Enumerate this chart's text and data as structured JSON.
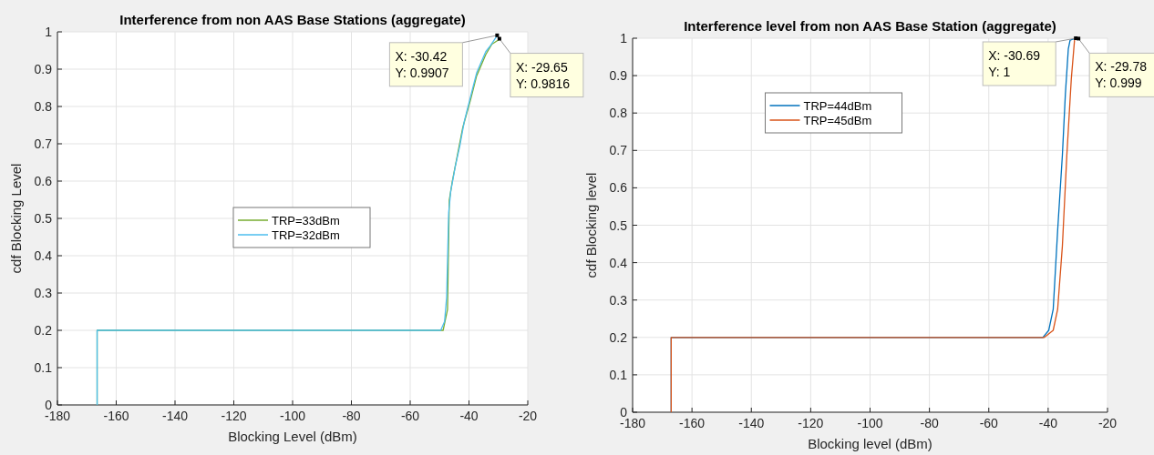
{
  "chart_data": [
    {
      "type": "line",
      "title": "Interference from non AAS Base Stations (aggregate)",
      "xlabel": "Blocking Level (dBm)",
      "ylabel": "cdf Blocking Level",
      "xlim": [
        -180,
        -20
      ],
      "ylim": [
        0,
        1
      ],
      "xticks": [
        -180,
        -160,
        -140,
        -120,
        -100,
        -80,
        -60,
        -40,
        -20
      ],
      "yticks": [
        0,
        0.1,
        0.2,
        0.3,
        0.4,
        0.5,
        0.6,
        0.7,
        0.8,
        0.9,
        1
      ],
      "grid": true,
      "legend": "center",
      "line_style": "solid",
      "marker": "none",
      "series": [
        {
          "name": "TRP=33dBm",
          "color": "#77ac30",
          "x": [
            -166.5,
            -166.5,
            -48.8,
            -47.3,
            -46.7,
            -45.7,
            -44.1,
            -42.1,
            -39.5,
            -37.4,
            -34.3,
            -32.2,
            -29.65
          ],
          "values": [
            0,
            0.2,
            0.2,
            0.256,
            0.549,
            0.598,
            0.663,
            0.744,
            0.817,
            0.882,
            0.939,
            0.967,
            0.98
          ]
        },
        {
          "name": "TRP=32dBm",
          "color": "#4dbeee",
          "x": [
            -166.5,
            -166.5,
            -49.6,
            -48.3,
            -47.6,
            -46.9,
            -46.2,
            -44.7,
            -43.1,
            -41.6,
            -39.5,
            -37.4,
            -34.3,
            -32.7,
            -30.42
          ],
          "values": [
            0,
            0.2,
            0.2,
            0.224,
            0.289,
            0.516,
            0.573,
            0.638,
            0.695,
            0.76,
            0.825,
            0.89,
            0.947,
            0.963,
            0.99
          ]
        }
      ],
      "annotations": [
        {
          "text": "X: -30.42\nY: 0.9907",
          "x": -30.42,
          "y": 0.9907
        },
        {
          "text": "X: -29.65\nY: 0.9816",
          "x": -29.65,
          "y": 0.9816
        }
      ]
    },
    {
      "type": "line",
      "title": "Interference level from non AAS Base Station (aggregate)",
      "xlabel": "Blocking level (dBm)",
      "ylabel": "cdf Blocking level",
      "xlim": [
        -180,
        -20
      ],
      "ylim": [
        0,
        1
      ],
      "xticks": [
        -180,
        -160,
        -140,
        -120,
        -100,
        -80,
        -60,
        -40,
        -20
      ],
      "yticks": [
        0,
        0.1,
        0.2,
        0.3,
        0.4,
        0.5,
        0.6,
        0.7,
        0.8,
        0.9,
        1
      ],
      "grid": true,
      "legend": "top",
      "line_style": "solid",
      "marker": "none",
      "series": [
        {
          "name": "TRP=44dBm",
          "color": "#0072bd",
          "x": [
            -167,
            -167,
            -41.8,
            -39.8,
            -38.3,
            -36.8,
            -35.2,
            -34.2,
            -33.2,
            -32.6,
            -30.69
          ],
          "values": [
            0,
            0.2,
            0.2,
            0.219,
            0.275,
            0.486,
            0.688,
            0.85,
            0.972,
            0.995,
            1
          ]
        },
        {
          "name": "TRP=45dBm",
          "color": "#d95319",
          "x": [
            -167,
            -167,
            -41.3,
            -38.3,
            -36.8,
            -35.2,
            -33.7,
            -32.2,
            -31.1,
            -29.78
          ],
          "values": [
            0,
            0.2,
            0.2,
            0.219,
            0.275,
            0.445,
            0.688,
            0.891,
            0.996,
            0.999
          ]
        }
      ],
      "annotations": [
        {
          "text": "X: -30.69\nY: 1",
          "x": -30.69,
          "y": 1
        },
        {
          "text": "X: -29.78\nY: 0.999",
          "x": -29.78,
          "y": 0.999
        }
      ]
    }
  ]
}
